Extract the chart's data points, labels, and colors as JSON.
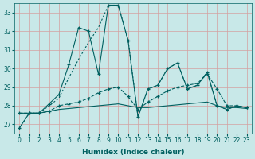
{
  "xlabel": "Humidex (Indice chaleur)",
  "background_color": "#c8e8e8",
  "grid_color": "#d4a0a0",
  "line_color": "#006060",
  "xlim": [
    -0.5,
    23.5
  ],
  "ylim": [
    26.5,
    33.5
  ],
  "yticks": [
    27,
    28,
    29,
    30,
    31,
    32,
    33
  ],
  "xticks": [
    0,
    1,
    2,
    3,
    4,
    5,
    6,
    7,
    8,
    9,
    10,
    11,
    12,
    13,
    14,
    15,
    16,
    17,
    18,
    19,
    20,
    21,
    22,
    23
  ],
  "s1_x": [
    0,
    1,
    2,
    3,
    4,
    5,
    6,
    7,
    8,
    9,
    10,
    11,
    12,
    13,
    14,
    15,
    16,
    17,
    18,
    19,
    20,
    21,
    22,
    23
  ],
  "s1_y": [
    26.8,
    27.6,
    27.6,
    28.1,
    28.6,
    30.2,
    32.2,
    32.0,
    29.7,
    33.4,
    33.4,
    31.5,
    27.4,
    28.9,
    29.1,
    30.0,
    30.3,
    28.9,
    29.1,
    29.8,
    28.0,
    27.8,
    28.0,
    27.9
  ],
  "s2_x": [
    0,
    1,
    2,
    3,
    4,
    5,
    6,
    7,
    8,
    9,
    10,
    11,
    12,
    13,
    14,
    15,
    16,
    17,
    18,
    19,
    20,
    21,
    22,
    23
  ],
  "s2_y": [
    26.8,
    27.6,
    27.6,
    28.0,
    28.4,
    29.5,
    30.5,
    31.4,
    32.2,
    33.4,
    33.4,
    31.5,
    27.4,
    28.9,
    29.1,
    30.0,
    30.3,
    28.9,
    29.1,
    29.8,
    28.0,
    27.8,
    28.0,
    27.9
  ],
  "s3_x": [
    0,
    1,
    2,
    3,
    4,
    5,
    6,
    7,
    8,
    9,
    10,
    11,
    12,
    13,
    14,
    15,
    16,
    17,
    18,
    19,
    20,
    21,
    22,
    23
  ],
  "s3_y": [
    27.6,
    27.6,
    27.6,
    27.7,
    28.0,
    28.1,
    28.2,
    28.4,
    28.7,
    28.9,
    29.0,
    28.5,
    27.8,
    28.2,
    28.5,
    28.8,
    29.0,
    29.1,
    29.2,
    29.7,
    28.9,
    28.0,
    28.0,
    27.9
  ],
  "s4_x": [
    0,
    1,
    2,
    3,
    4,
    5,
    6,
    7,
    8,
    9,
    10,
    11,
    12,
    13,
    14,
    15,
    16,
    17,
    18,
    19,
    20,
    21,
    22,
    23
  ],
  "s4_y": [
    27.6,
    27.6,
    27.6,
    27.7,
    27.8,
    27.85,
    27.9,
    27.95,
    28.0,
    28.05,
    28.1,
    28.0,
    27.9,
    27.9,
    27.95,
    28.0,
    28.05,
    28.1,
    28.15,
    28.2,
    28.0,
    27.9,
    27.9,
    27.85
  ]
}
